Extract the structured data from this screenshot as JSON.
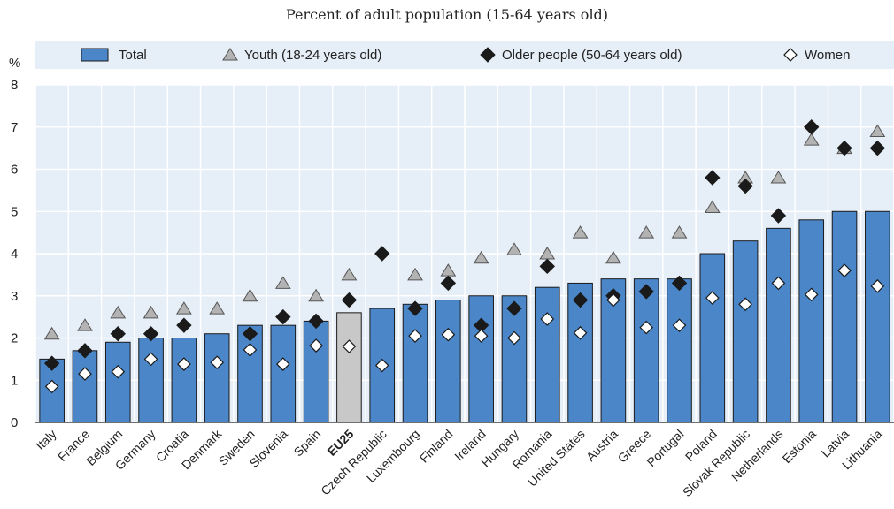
{
  "chart_data": {
    "type": "bar",
    "subtitle": "Percent of adult population (15-64 years old)",
    "ylabel": "%",
    "ylim": [
      0,
      8
    ],
    "yticks": [
      0,
      1,
      2,
      3,
      4,
      5,
      6,
      7,
      8
    ],
    "grid": true,
    "legend_position": "top",
    "highlight_category": "EU25",
    "categories": [
      "Italy",
      "France",
      "Belgium",
      "Germany",
      "Croatia",
      "Denmark",
      "Sweden",
      "Slovenia",
      "Spain",
      "EU25",
      "Czech Republic",
      "Luxembourg",
      "Finland",
      "Ireland",
      "Hungary",
      "Romania",
      "United States",
      "Austria",
      "Greece",
      "Portugal",
      "Poland",
      "Slovak Republic",
      "Netherlands",
      "Estonia",
      "Latvia",
      "Lithuania"
    ],
    "series": [
      {
        "name": "Total",
        "marker": "bar",
        "color": "#4a86c8",
        "values": [
          1.5,
          1.7,
          1.9,
          2.0,
          2.0,
          2.1,
          2.3,
          2.3,
          2.4,
          2.6,
          2.7,
          2.8,
          2.9,
          3.0,
          3.0,
          3.2,
          3.3,
          3.4,
          3.4,
          3.4,
          4.0,
          4.3,
          4.6,
          4.8,
          5.0,
          5.0
        ]
      },
      {
        "name": "Youth (18-24 years old)",
        "marker": "triangle",
        "color": "#b3b3b3",
        "values": [
          2.1,
          2.3,
          2.6,
          2.6,
          2.7,
          2.7,
          3.0,
          3.3,
          3.0,
          3.5,
          null,
          3.5,
          3.6,
          3.9,
          4.1,
          4.0,
          4.5,
          3.9,
          4.5,
          4.5,
          5.1,
          5.8,
          5.8,
          6.7,
          6.5,
          6.9
        ]
      },
      {
        "name": "Older people (50-64 years old)",
        "marker": "diamond",
        "color": "#1a1a1a",
        "values": [
          1.4,
          1.7,
          2.1,
          2.1,
          2.3,
          null,
          2.1,
          2.5,
          2.4,
          2.9,
          4.0,
          2.7,
          3.3,
          2.3,
          2.7,
          3.7,
          2.9,
          3.0,
          3.1,
          3.3,
          5.8,
          5.6,
          4.9,
          7.0,
          6.5,
          6.5
        ]
      },
      {
        "name": "Women",
        "marker": "diamond-open",
        "color": "#ffffff",
        "values": [
          0.85,
          1.15,
          1.2,
          1.5,
          1.38,
          1.42,
          1.72,
          1.38,
          1.82,
          1.8,
          1.35,
          2.05,
          2.08,
          2.05,
          2.0,
          2.45,
          2.12,
          2.9,
          2.25,
          2.3,
          2.95,
          2.8,
          3.3,
          3.03,
          3.6,
          3.23
        ]
      }
    ],
    "bar_color": "#4a86c8",
    "highlight_color": "#c8c8c8"
  }
}
